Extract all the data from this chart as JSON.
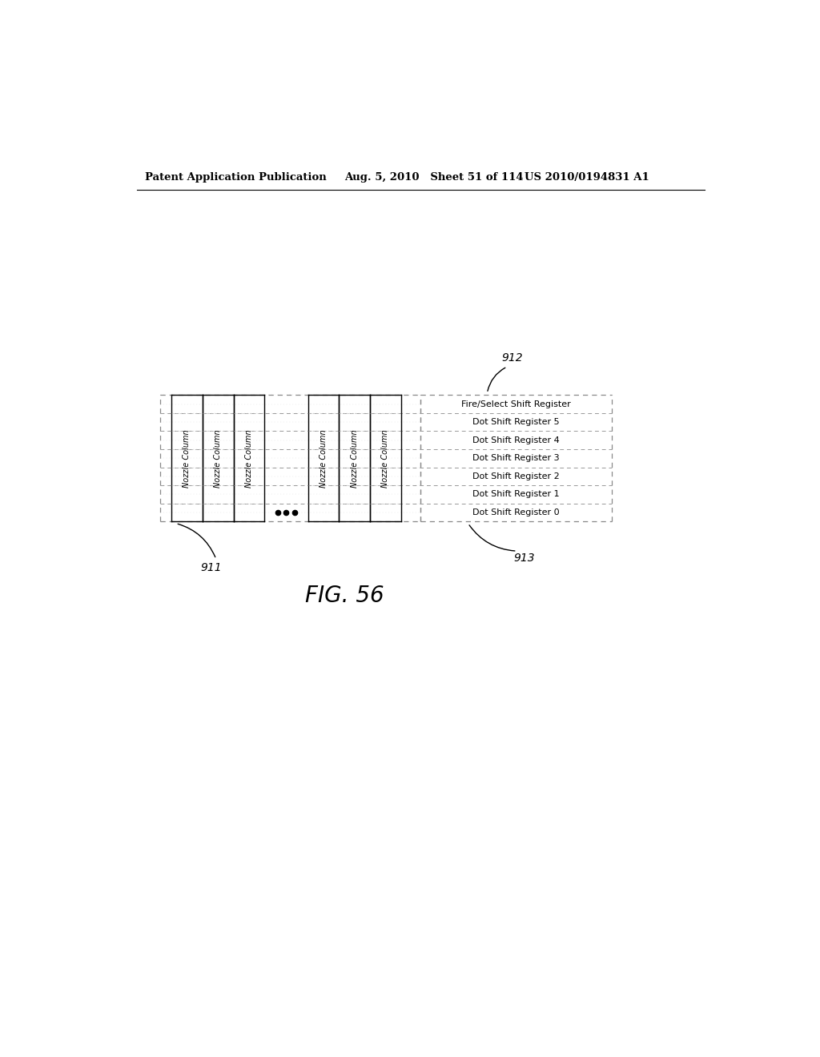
{
  "header_left": "Patent Application Publication",
  "header_mid": "Aug. 5, 2010   Sheet 51 of 114",
  "header_right": "US 2010/0194831 A1",
  "fig_label": "FIG. 56",
  "label_912": "912",
  "label_913": "913",
  "label_911": "911",
  "register_labels": [
    "Fire/Select Shift Register",
    "Dot Shift Register 5",
    "Dot Shift Register 4",
    "Dot Shift Register 3",
    "Dot Shift Register 2",
    "Dot Shift Register 1",
    "Dot Shift Register 0"
  ],
  "nozzle_col_label": "Nozzle Column",
  "bg_color": "#ffffff",
  "fg_color": "#000000"
}
